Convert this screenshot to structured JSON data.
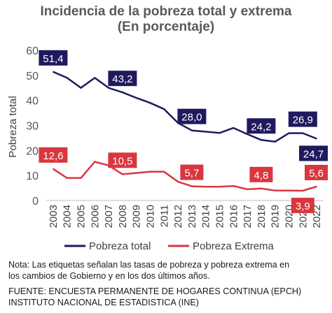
{
  "chart_data": {
    "type": "line",
    "title": "Incidencia de la pobreza total y extrema",
    "subtitle": "(En porcentaje)",
    "xlabel": "",
    "ylabel": "Pobreza total",
    "ylim": [
      0,
      60
    ],
    "yticks": [
      "0",
      "10",
      "20",
      "30",
      "40",
      "50",
      "60"
    ],
    "grid": false,
    "legend_position": "bottom",
    "x": [
      "2003",
      "2004",
      "2005",
      "2006",
      "2007",
      "2008",
      "2009",
      "2010",
      "2011",
      "2012",
      "2013",
      "2014",
      "2015",
      "2016",
      "2017",
      "2018",
      "2019",
      "2020",
      "2021",
      "2022"
    ],
    "series": [
      {
        "name": "Pobreza total",
        "color": "#1f1a5e",
        "values": [
          51.4,
          49.0,
          45.0,
          49.0,
          45.0,
          43.2,
          41.0,
          39.0,
          36.5,
          31.0,
          28.0,
          27.5,
          27.0,
          29.0,
          26.5,
          24.2,
          23.5,
          26.9,
          26.9,
          24.7
        ],
        "labels": [
          {
            "x": "2003",
            "text": "51,4",
            "pos": "above"
          },
          {
            "x": "2008",
            "text": "43,2",
            "pos": "above"
          },
          {
            "x": "2013",
            "text": "28,0",
            "pos": "above"
          },
          {
            "x": "2018",
            "text": "24,2",
            "pos": "above"
          },
          {
            "x": "2021",
            "text": "26,9",
            "pos": "above"
          },
          {
            "x": "2022",
            "text": "24,7",
            "pos": "below"
          }
        ]
      },
      {
        "name": "Pobreza Extrema",
        "color": "#d9373f",
        "values": [
          12.6,
          9.0,
          9.0,
          15.5,
          14.0,
          10.5,
          11.0,
          11.5,
          11.5,
          7.5,
          5.7,
          5.5,
          5.5,
          5.8,
          4.5,
          4.8,
          4.0,
          4.0,
          3.9,
          5.6
        ],
        "labels": [
          {
            "x": "2003",
            "text": "12,6",
            "pos": "above"
          },
          {
            "x": "2008",
            "text": "10,5",
            "pos": "above"
          },
          {
            "x": "2013",
            "text": "5,7",
            "pos": "above"
          },
          {
            "x": "2018",
            "text": "4,8",
            "pos": "above"
          },
          {
            "x": "2021",
            "text": "3,9",
            "pos": "below"
          },
          {
            "x": "2022",
            "text": "5,6",
            "pos": "above"
          }
        ]
      }
    ]
  },
  "notes": {
    "note_line1": "Nota: Las etiquetas señalan las tasas de pobreza y pobreza extrema en",
    "note_line2": "los cambios de Gobierno y  en  los dos últimos años.",
    "source_line1": "FUENTE: ENCUESTA PERMANENTE DE HOGARES CONTINUA (EPCH)",
    "source_line2": "INSTITUTO NACIONAL DE ESTADISTICA (INE)"
  }
}
